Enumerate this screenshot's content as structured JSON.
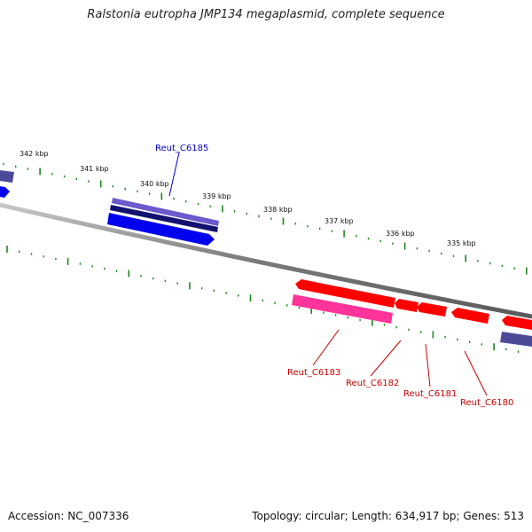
{
  "title": "Ralstonia eutropha JMP134 megaplasmid, complete sequence",
  "footer": {
    "accession": "Accession: NC_007336",
    "summary": "Topology: circular; Length: 634,917 bp; Genes: 513"
  },
  "colors": {
    "backbone": "#808080",
    "tick": "#1a8a1a",
    "forward_label": "#0000cc",
    "reverse_label": "#cc0000",
    "forward_gene": "#0000ee",
    "forward_gene_dark": "#121270",
    "forward_gene_light": "#6a5acd",
    "reverse_gene": "#ff0000",
    "reverse_gene_pink": "#ff3399",
    "reverse_gene_dark": "#4b4a99"
  },
  "tick_labels": [
    "342 kbp",
    "341 kbp",
    "340 kbp",
    "339 kbp",
    "338 kbp",
    "337 kbp",
    "336 kbp",
    "335 kbp"
  ],
  "gene_labels": [
    {
      "name": "Reut_C6185",
      "strand": "forward"
    },
    {
      "name": "Reut_C6183",
      "strand": "reverse"
    },
    {
      "name": "Reut_C6182",
      "strand": "reverse"
    },
    {
      "name": "Reut_C6181",
      "strand": "reverse"
    },
    {
      "name": "Reut_C6180",
      "strand": "reverse"
    }
  ]
}
